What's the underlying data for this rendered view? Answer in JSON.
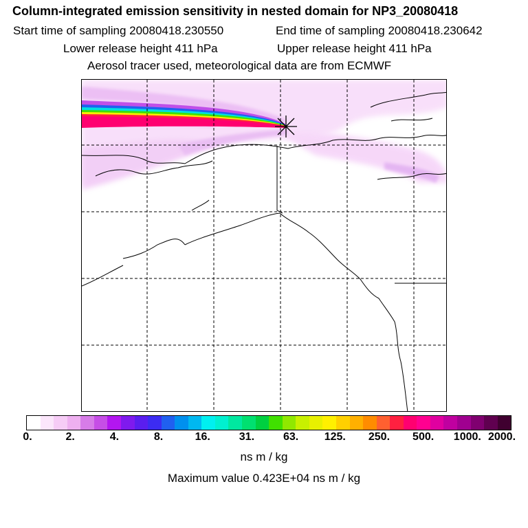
{
  "title": "Column-integrated emission sensitivity in nested domain for NP3_20080418",
  "start_label": "Start time of sampling 20080418.230550",
  "end_label": "End time of sampling 20080418.230642",
  "lower_label": "Lower release height  411 hPa",
  "upper_label": "Upper release height  411 hPa",
  "tracer_label": "Aerosol tracer used, meteorological data are from ECMWF",
  "colorbar": {
    "tick_labels": [
      "0.",
      "2.",
      "4.",
      "8.",
      "16.",
      "31.",
      "63.",
      "125.",
      "250.",
      "500.",
      "1000.",
      "2000."
    ],
    "colors": [
      "#ffffff",
      "#fbe6fb",
      "#f6ccf6",
      "#eeb0f0",
      "#d77ce8",
      "#c64ee6",
      "#b316f0",
      "#7f1aee",
      "#5a1eef",
      "#3c2cf2",
      "#2060f0",
      "#0090ee",
      "#00b8f0",
      "#00f0f0",
      "#00f0d0",
      "#00e8a0",
      "#00e070",
      "#00d040",
      "#40e000",
      "#90e800",
      "#c8f000",
      "#e8f000",
      "#fff000",
      "#ffd000",
      "#ffb000",
      "#ff8c00",
      "#ff6030",
      "#ff2040",
      "#ff0070",
      "#ff0090",
      "#e000a0",
      "#c000a0",
      "#a00090",
      "#800070",
      "#600050",
      "#400030"
    ],
    "unit": "ns m / kg"
  },
  "max_label": "Maximum value  0.423E+04 ns m / kg"
}
